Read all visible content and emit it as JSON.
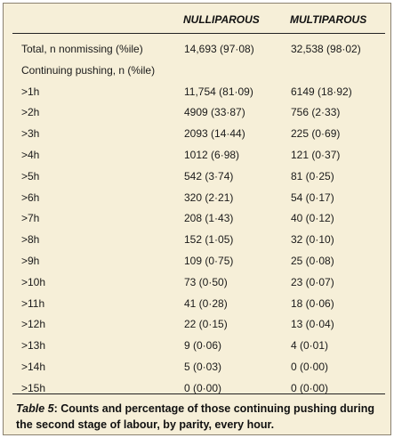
{
  "table": {
    "columns": [
      "NULLIPAROUS",
      "MULTIPAROUS"
    ],
    "rows": [
      {
        "label": "Total, n nonmissing (%ile)",
        "nulliparous": "14,693 (97·08)",
        "multiparous": "32,538 (98·02)"
      },
      {
        "label": "Continuing pushing, n (%ile)",
        "nulliparous": "",
        "multiparous": ""
      },
      {
        "label": ">1h",
        "nulliparous": "11,754 (81·09)",
        "multiparous": "6149 (18·92)"
      },
      {
        "label": ">2h",
        "nulliparous": "4909 (33·87)",
        "multiparous": "756 (2·33)"
      },
      {
        "label": ">3h",
        "nulliparous": "2093 (14·44)",
        "multiparous": "225 (0·69)"
      },
      {
        "label": ">4h",
        "nulliparous": "1012 (6·98)",
        "multiparous": "121 (0·37)"
      },
      {
        "label": ">5h",
        "nulliparous": "542 (3·74)",
        "multiparous": "81 (0·25)"
      },
      {
        "label": ">6h",
        "nulliparous": "320 (2·21)",
        "multiparous": "54 (0·17)"
      },
      {
        "label": ">7h",
        "nulliparous": "208 (1·43)",
        "multiparous": "40 (0·12)"
      },
      {
        "label": ">8h",
        "nulliparous": "152 (1·05)",
        "multiparous": "32 (0·10)"
      },
      {
        "label": ">9h",
        "nulliparous": "109 (0·75)",
        "multiparous": "25 (0·08)"
      },
      {
        "label": ">10h",
        "nulliparous": "73 (0·50)",
        "multiparous": "23 (0·07)"
      },
      {
        "label": ">11h",
        "nulliparous": "41 (0·28)",
        "multiparous": "18 (0·06)"
      },
      {
        "label": ">12h",
        "nulliparous": "22 (0·15)",
        "multiparous": "13 (0·04)"
      },
      {
        "label": ">13h",
        "nulliparous": "9 (0·06)",
        "multiparous": "4 (0·01)"
      },
      {
        "label": ">14h",
        "nulliparous": "5 (0·03)",
        "multiparous": "0 (0·00)"
      },
      {
        "label": ">15h",
        "nulliparous": "0 (0·00)",
        "multiparous": "0 (0·00)"
      }
    ]
  },
  "caption": {
    "label": "Table 5",
    "text": ": Counts and percentage of those continuing pushing during the second stage of labour, by parity, every hour."
  },
  "colors": {
    "background": "#f6efd8",
    "border": "#8a8170",
    "rule": "#222222"
  }
}
